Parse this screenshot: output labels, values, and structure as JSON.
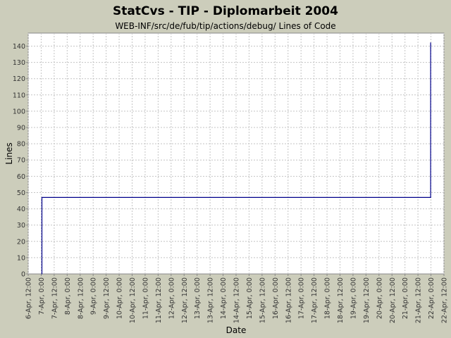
{
  "chart_data": {
    "type": "line",
    "title": "StatCvs - TIP - Diplomarbeit 2004",
    "subtitle": "WEB-INF/src/de/fub/tip/actions/debug/ Lines of Code",
    "xlabel": "Date",
    "ylabel": "Lines",
    "step": true,
    "grid": true,
    "ylim": [
      0,
      148
    ],
    "xlim": [
      "2004-04-06 12:00",
      "2004-04-22 12:00"
    ],
    "yticks": [
      0,
      10,
      20,
      30,
      40,
      50,
      60,
      70,
      80,
      90,
      100,
      110,
      120,
      130,
      140
    ],
    "xticks": [
      "6-Apr, 12:00",
      "7-Apr, 0:00",
      "7-Apr, 12:00",
      "8-Apr, 0:00",
      "8-Apr, 12:00",
      "9-Apr, 0:00",
      "9-Apr, 12:00",
      "10-Apr, 0:00",
      "10-Apr, 12:00",
      "11-Apr, 0:00",
      "11-Apr, 12:00",
      "12-Apr, 0:00",
      "12-Apr, 12:00",
      "13-Apr, 0:00",
      "13-Apr, 12:00",
      "14-Apr, 0:00",
      "14-Apr, 12:00",
      "15-Apr, 0:00",
      "15-Apr, 12:00",
      "16-Apr, 0:00",
      "16-Apr, 12:00",
      "17-Apr, 0:00",
      "17-Apr, 12:00",
      "18-Apr, 0:00",
      "18-Apr, 12:00",
      "19-Apr, 0:00",
      "19-Apr, 12:00",
      "20-Apr, 0:00",
      "20-Apr, 12:00",
      "21-Apr, 0:00",
      "21-Apr, 12:00",
      "22-Apr, 0:00",
      "22-Apr, 12:00"
    ],
    "series": [
      {
        "color": "#00008b",
        "points": [
          {
            "x": "2004-04-07 00:40",
            "y": 0
          },
          {
            "x": "2004-04-07 00:40",
            "y": 47
          },
          {
            "x": "2004-04-21 23:40",
            "y": 47
          },
          {
            "x": "2004-04-21 23:40",
            "y": 142
          }
        ]
      }
    ]
  }
}
